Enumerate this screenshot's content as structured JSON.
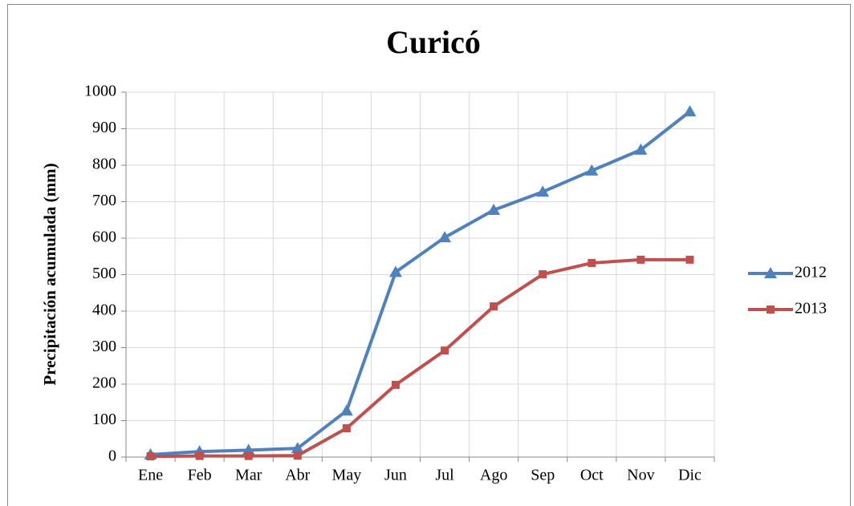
{
  "chart_data": {
    "type": "line",
    "title": "Curicó",
    "y_label": "Precipitación acumulada (mm)",
    "categories": [
      "Ene",
      "Feb",
      "Mar",
      "Abr",
      "May",
      "Jun",
      "Jul",
      "Ago",
      "Sep",
      "Oct",
      "Nov",
      "Dic"
    ],
    "series": [
      {
        "name": "2012",
        "color": "#4f81bd",
        "marker": "triangle",
        "values": [
          7,
          15,
          19,
          24,
          127,
          507,
          602,
          677,
          727,
          785,
          842,
          947
        ]
      },
      {
        "name": "2013",
        "color": "#c0504d",
        "marker": "square",
        "values": [
          2,
          3,
          3,
          4,
          79,
          198,
          292,
          413,
          501,
          532,
          541,
          541
        ]
      }
    ],
    "ylim": [
      0,
      1000
    ],
    "yticks": [
      0,
      100,
      200,
      300,
      400,
      500,
      600,
      700,
      800,
      900,
      1000
    ],
    "grid": true,
    "legend": "right"
  }
}
